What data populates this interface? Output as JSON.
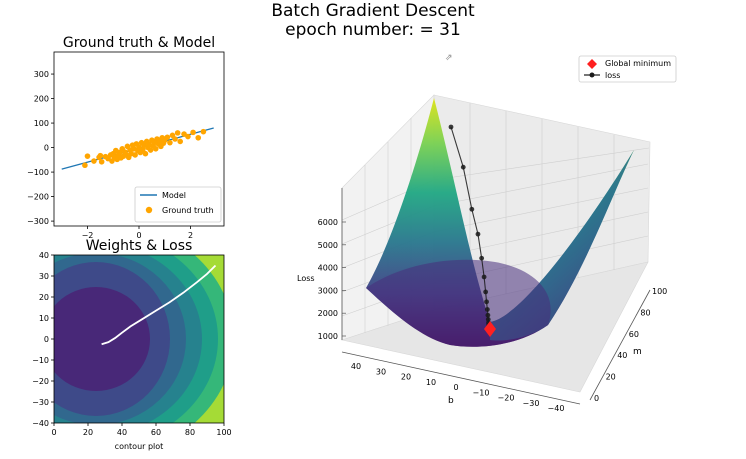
{
  "figure": {
    "title_line1": "Batch Gradient Descent",
    "title_line2": "epoch number: = 31"
  },
  "chart_data": [
    {
      "type": "scatter",
      "title": "Ground truth & Model",
      "xlabel": "",
      "ylabel": "",
      "xlim": [
        -3.3,
        3.3
      ],
      "ylim": [
        -320,
        390
      ],
      "xticks": [
        -2,
        0,
        2
      ],
      "yticks": [
        -300,
        -200,
        -100,
        0,
        100,
        200,
        300
      ],
      "legend": {
        "placement": "lower-right",
        "entries": [
          "Model",
          "Ground truth"
        ]
      },
      "colors": {
        "model": "#1f77b4",
        "ground_truth": "#ffa500"
      },
      "series": [
        {
          "name": "Model",
          "kind": "line",
          "x": [
            -3.0,
            2.9
          ],
          "y": [
            -88,
            80
          ]
        },
        {
          "name": "Ground truth",
          "kind": "scatter",
          "points": [
            [
              -2.1,
              -72
            ],
            [
              -2.0,
              -35
            ],
            [
              -1.75,
              -55
            ],
            [
              -1.55,
              -40
            ],
            [
              -1.5,
              -33
            ],
            [
              -1.45,
              -58
            ],
            [
              -1.3,
              -37
            ],
            [
              -1.2,
              -45
            ],
            [
              -1.1,
              -30
            ],
            [
              -1.05,
              -55
            ],
            [
              -1.0,
              -25
            ],
            [
              -0.95,
              -40
            ],
            [
              -0.9,
              -12
            ],
            [
              -0.85,
              -48
            ],
            [
              -0.8,
              -30
            ],
            [
              -0.75,
              -20
            ],
            [
              -0.7,
              -42
            ],
            [
              -0.65,
              -5
            ],
            [
              -0.6,
              -35
            ],
            [
              -0.55,
              -18
            ],
            [
              -0.5,
              -28
            ],
            [
              -0.45,
              5
            ],
            [
              -0.4,
              -40
            ],
            [
              -0.35,
              -10
            ],
            [
              -0.3,
              -25
            ],
            [
              -0.25,
              10
            ],
            [
              -0.2,
              -5
            ],
            [
              -0.15,
              -30
            ],
            [
              -0.1,
              15
            ],
            [
              -0.05,
              -12
            ],
            [
              0.0,
              2
            ],
            [
              0.05,
              -20
            ],
            [
              0.1,
              20
            ],
            [
              0.15,
              -8
            ],
            [
              0.2,
              10
            ],
            [
              0.25,
              -25
            ],
            [
              0.3,
              25
            ],
            [
              0.35,
              0
            ],
            [
              0.4,
              12
            ],
            [
              0.45,
              -10
            ],
            [
              0.5,
              30
            ],
            [
              0.55,
              8
            ],
            [
              0.6,
              22
            ],
            [
              0.65,
              -5
            ],
            [
              0.7,
              35
            ],
            [
              0.75,
              15
            ],
            [
              0.8,
              28
            ],
            [
              0.85,
              5
            ],
            [
              0.9,
              40
            ],
            [
              0.95,
              18
            ],
            [
              1.0,
              30
            ],
            [
              1.1,
              42
            ],
            [
              1.2,
              20
            ],
            [
              1.3,
              50
            ],
            [
              1.4,
              35
            ],
            [
              1.5,
              60
            ],
            [
              1.6,
              25
            ],
            [
              1.75,
              55
            ],
            [
              1.9,
              45
            ],
            [
              2.1,
              62
            ],
            [
              2.3,
              40
            ],
            [
              2.5,
              65
            ]
          ]
        }
      ]
    },
    {
      "type": "heatmap",
      "title": "Weights & Loss",
      "xlabel": "contour plot",
      "ylabel": "",
      "xlim": [
        0,
        100
      ],
      "ylim": [
        -40,
        40
      ],
      "xticks": [
        0,
        20,
        40,
        60,
        80,
        100
      ],
      "yticks": [
        -40,
        -30,
        -20,
        -10,
        0,
        10,
        20,
        30,
        40
      ],
      "contour_center": [
        25,
        0
      ],
      "colormap": "viridis",
      "path": {
        "color": "#ffffff",
        "x": [
          28,
          32,
          36,
          40,
          45,
          52,
          60,
          68,
          76,
          84,
          90,
          95
        ],
        "y": [
          -2.5,
          -1.5,
          0.5,
          3,
          6,
          9.5,
          13.5,
          17.5,
          22,
          27,
          31,
          35
        ]
      }
    },
    {
      "type": "surface3d",
      "title": "",
      "xlabel": "m",
      "ylabel": "b",
      "zlabel": "Loss",
      "m_ticks": [
        0,
        20,
        40,
        60,
        80,
        100
      ],
      "b_ticks": [
        40,
        30,
        20,
        10,
        0,
        -10,
        -20,
        -30,
        -40
      ],
      "z_ticks": [
        1000,
        2000,
        3000,
        4000,
        5000,
        6000
      ],
      "colormap": "viridis",
      "legend": {
        "placement": "top-right",
        "entries": [
          "Global minimum",
          "loss"
        ]
      },
      "colors": {
        "global_minimum": "#ff2020",
        "loss_path": "#1a1a1a"
      },
      "global_minimum": {
        "m": 62,
        "b": 0,
        "loss": 650
      },
      "loss_path": {
        "m": [
          0,
          20,
          34,
          44,
          50,
          54,
          56.5,
          58,
          59.3,
          60.2,
          60.8,
          61.2,
          61.5,
          61.7,
          61.9,
          62
        ],
        "b": [
          -2,
          -1.5,
          -1.2,
          -1,
          -0.8,
          -0.6,
          -0.5,
          -0.4,
          -0.3,
          -0.25,
          -0.2,
          -0.15,
          -0.1,
          -0.05,
          -0.02,
          0
        ],
        "loss": [
          5950,
          4900,
          3800,
          3150,
          2520,
          2030,
          1640,
          1380,
          1180,
          1030,
          920,
          830,
          770,
          720,
          690,
          670
        ]
      }
    }
  ]
}
